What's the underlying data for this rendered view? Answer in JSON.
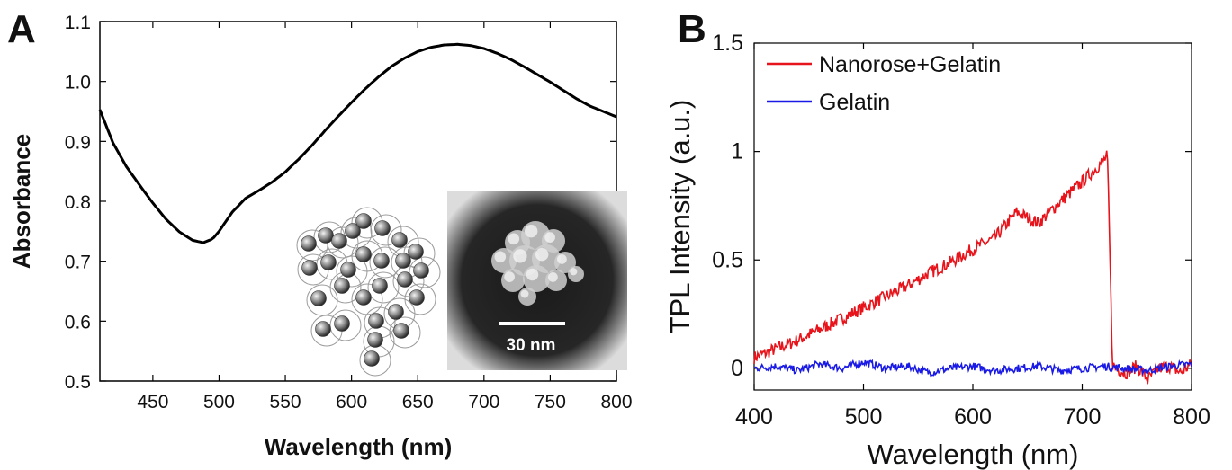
{
  "chart_data": [
    {
      "panel": "A",
      "type": "line",
      "title": "",
      "xlabel": "Wavelength (nm)",
      "ylabel": "Absorbance",
      "xlim": [
        410,
        800
      ],
      "ylim": [
        0.5,
        1.1
      ],
      "xticks": [
        450,
        500,
        550,
        600,
        650,
        700,
        750,
        800
      ],
      "yticks": [
        0.5,
        0.6,
        0.7,
        0.8,
        0.9,
        1.0,
        1.1
      ],
      "ytick_labels": [
        "0.5",
        "0.6",
        "0.7",
        "0.8",
        "0.9",
        "1.0",
        "1.1"
      ],
      "grid": false,
      "series": [
        {
          "color": "#000000",
          "x": [
            410,
            420,
            430,
            440,
            450,
            460,
            470,
            480,
            488,
            495,
            500,
            510,
            520,
            530,
            540,
            550,
            560,
            570,
            580,
            590,
            600,
            610,
            620,
            630,
            640,
            650,
            660,
            670,
            680,
            690,
            700,
            710,
            720,
            730,
            740,
            750,
            760,
            770,
            780,
            790,
            800
          ],
          "y": [
            0.953,
            0.897,
            0.858,
            0.827,
            0.797,
            0.77,
            0.749,
            0.735,
            0.731,
            0.737,
            0.75,
            0.782,
            0.805,
            0.818,
            0.832,
            0.849,
            0.87,
            0.893,
            0.918,
            0.942,
            0.965,
            0.987,
            1.007,
            1.025,
            1.039,
            1.05,
            1.057,
            1.061,
            1.062,
            1.06,
            1.055,
            1.047,
            1.037,
            1.025,
            1.012,
            0.999,
            0.985,
            0.971,
            0.959,
            0.95,
            0.941
          ]
        }
      ],
      "inset": {
        "type": "image",
        "scale_bar_label": "30 nm",
        "description_icon": "nanoparticle-cluster-schematic-and-micrograph"
      }
    },
    {
      "panel": "B",
      "type": "line",
      "title": "",
      "xlabel": "Wavelength (nm)",
      "ylabel": "TPL Intensity (a.u.)",
      "xlim": [
        400,
        800
      ],
      "ylim": [
        -0.1,
        1.5
      ],
      "xticks": [
        400,
        500,
        600,
        700,
        800
      ],
      "yticks": [
        0,
        0.5,
        1,
        1.5
      ],
      "ytick_labels": [
        "0",
        "0.5",
        "1",
        "1.5"
      ],
      "grid": false,
      "legend": "top-left",
      "series": [
        {
          "name": "Nanorose+Gelatin",
          "color": "#e8141b",
          "x": [
            400,
            420,
            440,
            460,
            480,
            500,
            520,
            540,
            560,
            580,
            600,
            620,
            640,
            660,
            680,
            700,
            710,
            720,
            723,
            725,
            727,
            728,
            730,
            740,
            750,
            760,
            770,
            780,
            790,
            800
          ],
          "y": [
            0.05,
            0.09,
            0.13,
            0.18,
            0.23,
            0.28,
            0.33,
            0.38,
            0.44,
            0.49,
            0.55,
            0.6,
            0.72,
            0.67,
            0.77,
            0.86,
            0.91,
            0.96,
            0.98,
            0.6,
            0.15,
            0.02,
            0.0,
            -0.02,
            0.01,
            -0.05,
            0.0,
            0.01,
            -0.02,
            0.02
          ]
        },
        {
          "name": "Gelatin",
          "color": "#1a1ae6",
          "x": [
            400,
            420,
            440,
            460,
            480,
            500,
            520,
            540,
            560,
            580,
            600,
            620,
            640,
            660,
            680,
            700,
            720,
            740,
            760,
            780,
            800
          ],
          "y": [
            0.0,
            0.01,
            -0.01,
            0.02,
            0.0,
            0.03,
            0.0,
            0.01,
            -0.02,
            0.0,
            0.01,
            -0.01,
            0.0,
            0.01,
            -0.01,
            0.0,
            0.01,
            0.0,
            -0.01,
            0.01,
            0.02
          ]
        }
      ]
    }
  ],
  "panels": {
    "a": "A",
    "b": "B"
  }
}
